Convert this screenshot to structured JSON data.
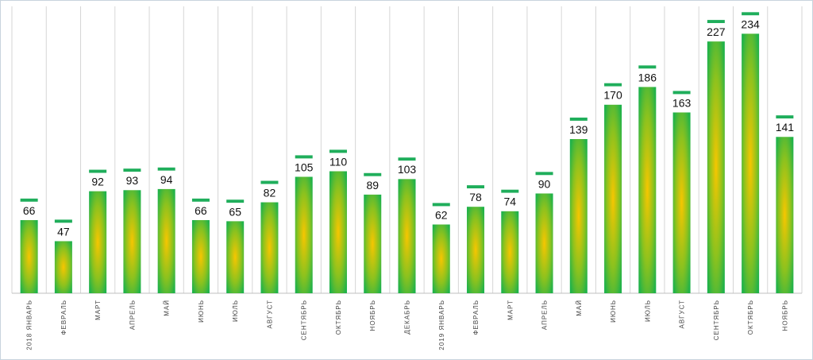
{
  "chart_data": {
    "type": "bar",
    "categories": [
      "2018 ЯНВАРЬ",
      "ФЕВРАЛЬ",
      "МАРТ",
      "АПРЕЛЬ",
      "МАЙ",
      "ИЮНЬ",
      "ИЮЛЬ",
      "АВГУСТ",
      "СЕНТЯБРЬ",
      "ОКТЯБРЬ",
      "НОЯБРЬ",
      "ДЕКАБРЬ",
      "2019 ЯНВАРЬ",
      "ФЕВРАЛЬ",
      "МАРТ",
      "АПРЕЛЬ",
      "МАЙ",
      "ИЮНЬ",
      "ИЮЛЬ",
      "АВГУСТ",
      "СЕНТЯБРЬ",
      "ОКТЯБРЬ",
      "НОЯБРЬ"
    ],
    "values": [
      66,
      47,
      92,
      93,
      94,
      66,
      65,
      82,
      105,
      110,
      89,
      103,
      62,
      78,
      74,
      90,
      139,
      170,
      186,
      163,
      227,
      234,
      141
    ],
    "title": "",
    "xlabel": "",
    "ylabel": "",
    "ylim": [
      0,
      250
    ],
    "grid": "vertical",
    "data_labels": true,
    "colors": {
      "bar_edge": "#1fb24a",
      "bar_center": "#f7c600",
      "cap": "#1fae5b",
      "grid": "#d6d6d6"
    }
  }
}
